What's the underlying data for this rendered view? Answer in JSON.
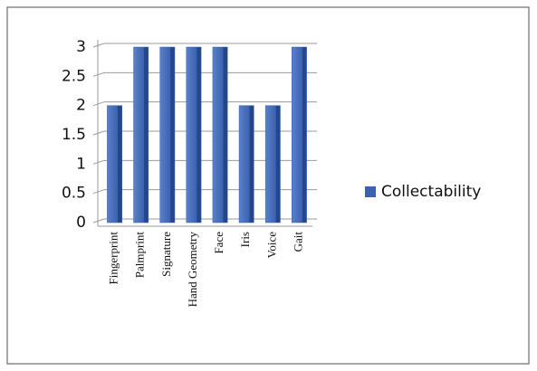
{
  "chart_data": {
    "type": "bar",
    "categories": [
      "Fingerprint",
      "Palmprint",
      "Signature",
      "Hand Geometry",
      "Face",
      "Iris",
      "Voice",
      "Gait"
    ],
    "series": [
      {
        "name": "Collectability",
        "color": "#3b62b0",
        "values": [
          2,
          3,
          3,
          3,
          3,
          2,
          2,
          3
        ]
      }
    ],
    "ylim": [
      0,
      3
    ],
    "yticks": [
      0,
      0.5,
      1,
      1.5,
      2,
      2.5,
      3
    ],
    "grid": true,
    "legend": "right"
  }
}
